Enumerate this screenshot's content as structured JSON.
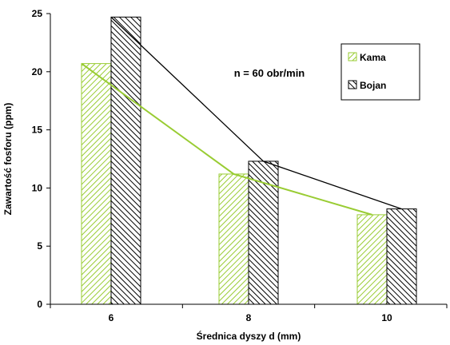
{
  "chart_data": {
    "type": "bar",
    "categories": [
      "6",
      "8",
      "10"
    ],
    "series": [
      {
        "name": "Kama",
        "values": [
          20.7,
          11.2,
          7.7
        ],
        "color": "#99cc33"
      },
      {
        "name": "Bojan",
        "values": [
          24.7,
          12.3,
          8.2
        ],
        "color": "#000000"
      }
    ],
    "trend_lines": true,
    "xlabel": "Średnica dyszy d (mm)",
    "ylabel": "Zawartość fosforu (ppm)",
    "ylim": [
      0,
      25
    ],
    "yticks": [
      "0",
      "5",
      "10",
      "15",
      "20",
      "25"
    ],
    "annotation": "n = 60 obr/min",
    "legend_position": "top-right",
    "grid": false
  }
}
